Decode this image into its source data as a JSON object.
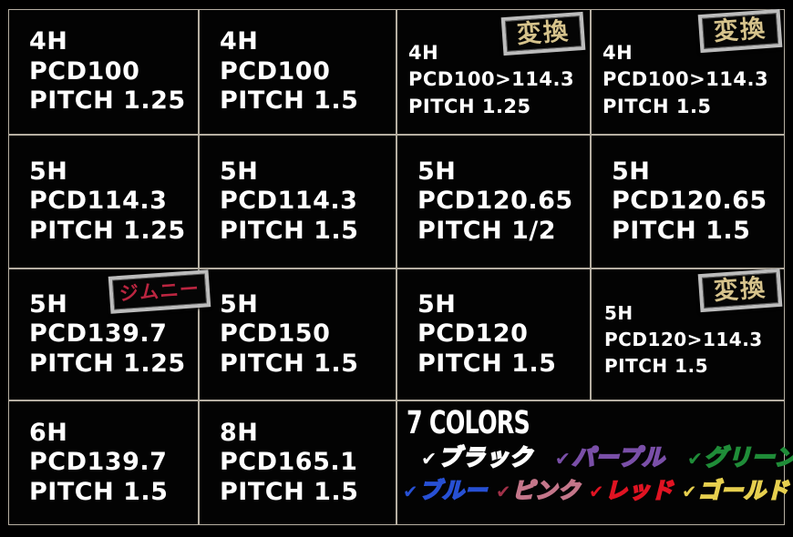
{
  "grid": {
    "cells": [
      {
        "lines": [
          "4H",
          "PCD100",
          "PITCH 1.25"
        ]
      },
      {
        "lines": [
          "4H",
          "PCD100",
          "PITCH 1.5"
        ]
      },
      {
        "lines": [
          "4H",
          "PCD100>114.3",
          "PITCH 1.25"
        ],
        "badge": "変換"
      },
      {
        "lines": [
          "4H",
          "PCD100>114.3",
          "PITCH 1.5"
        ],
        "badge": "変換"
      },
      {
        "lines": [
          "5H",
          "PCD114.3",
          "PITCH 1.25"
        ]
      },
      {
        "lines": [
          "5H",
          "PCD114.3",
          "PITCH 1.5"
        ]
      },
      {
        "lines": [
          "5H",
          "PCD120.65",
          "PITCH 1/2"
        ]
      },
      {
        "lines": [
          "5H",
          "PCD120.65",
          "PITCH 1.5"
        ]
      },
      {
        "lines": [
          "5H",
          "PCD139.7",
          "PITCH 1.25"
        ],
        "badge": "ジムニー"
      },
      {
        "lines": [
          "5H",
          "PCD150",
          "PITCH 1.5"
        ]
      },
      {
        "lines": [
          "5H",
          "PCD120",
          "PITCH 1.5"
        ]
      },
      {
        "lines": [
          "5H",
          "PCD120>114.3",
          "PITCH 1.5"
        ],
        "badge": "変換"
      },
      {
        "lines": [
          "6H",
          "PCD139.7",
          "PITCH 1.5"
        ]
      },
      {
        "lines": [
          "8H",
          "PCD165.1",
          "PITCH 1.5"
        ]
      }
    ]
  },
  "badge_colors": {
    "henkan_text": "#d6c38c",
    "jimny_text": "#bb2540",
    "border_silver": "#bcbcbc"
  },
  "colors_section": {
    "title": "7 COLORS",
    "check_glyph": "✔",
    "items": [
      {
        "label": "ブラック",
        "hex": "#ffffff",
        "check_hex": "#ffffff"
      },
      {
        "label": "パープル",
        "hex": "#7a4fa8",
        "check_hex": "#7a4fa8"
      },
      {
        "label": "グリーン",
        "hex": "#1f8c38",
        "check_hex": "#1f8c38"
      },
      {
        "label": "ブルー",
        "hex": "#2750d4",
        "check_hex": "#2750d4"
      },
      {
        "label": "ピンク",
        "hex": "#c4768a",
        "check_hex": "#a03048"
      },
      {
        "label": "レッド",
        "hex": "#e01322",
        "check_hex": "#e01322"
      },
      {
        "label": "ゴールド",
        "hex": "#e6cf4e",
        "check_hex": "#e6cf4e"
      }
    ]
  }
}
